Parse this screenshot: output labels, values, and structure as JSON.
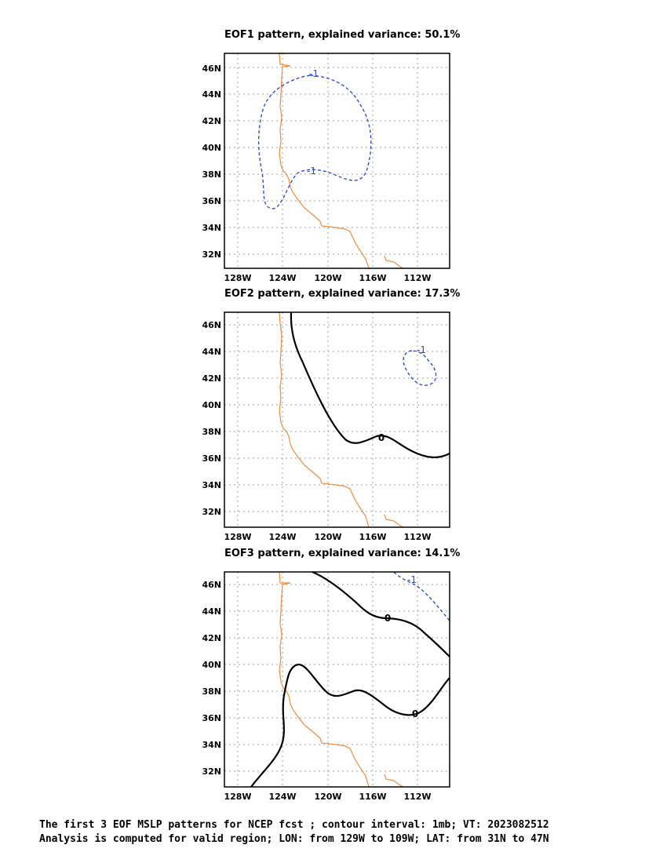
{
  "panels": [
    {
      "title": "EOF1 pattern, explained variance: 50.1%",
      "contour_labels": [
        "-1",
        "-1"
      ],
      "lat_labels": [
        "46N",
        "44N",
        "42N",
        "40N",
        "38N",
        "36N",
        "34N",
        "32N"
      ],
      "lon_labels": [
        "128W",
        "124W",
        "120W",
        "116W",
        "112W"
      ]
    },
    {
      "title": "EOF2 pattern, explained variance: 17.3%",
      "contour_labels": [
        "0",
        "-1"
      ],
      "lat_labels": [
        "46N",
        "44N",
        "42N",
        "40N",
        "38N",
        "36N",
        "34N",
        "32N"
      ],
      "lon_labels": [
        "128W",
        "124W",
        "120W",
        "116W",
        "112W"
      ]
    },
    {
      "title": "EOF3 pattern, explained variance: 14.1%",
      "contour_labels": [
        "0",
        "0",
        "-1"
      ],
      "lat_labels": [
        "46N",
        "44N",
        "42N",
        "40N",
        "38N",
        "36N",
        "34N",
        "32N"
      ],
      "lon_labels": [
        "128W",
        "124W",
        "120W",
        "116W",
        "112W"
      ]
    }
  ],
  "caption": {
    "line1": "The first 3 EOF MSLP patterns for NCEP fcst ; contour interval: 1mb; VT: 2023082512",
    "line2": "Analysis is computed for valid region; LON: from 129W to 109W; LAT: from 31N to 47N"
  },
  "colors": {
    "coastline": "#f08c3c",
    "negative_contour": "#2a4fe0",
    "zero_contour": "#000000",
    "grid": "#a0a0a0"
  }
}
